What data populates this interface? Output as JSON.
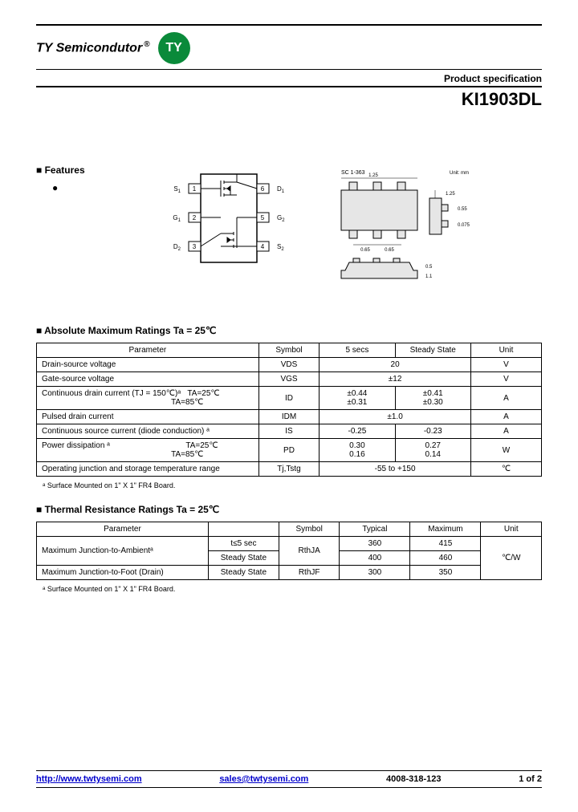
{
  "header": {
    "company": "TY Semicondutor",
    "reg": "®",
    "logo_text": "TY",
    "logo_bg": "#0a8a3a",
    "spec_label": "Product specification",
    "part_number": "KI1903DL"
  },
  "features": {
    "title": "Features"
  },
  "pin_diagram": {
    "pins_left": [
      {
        "label": "S",
        "sub": "1",
        "num": "1"
      },
      {
        "label": "G",
        "sub": "1",
        "num": "2"
      },
      {
        "label": "D",
        "sub": "2",
        "num": "3"
      }
    ],
    "pins_right": [
      {
        "label": "D",
        "sub": "1",
        "num": "6"
      },
      {
        "label": "G",
        "sub": "2",
        "num": "5"
      },
      {
        "label": "S",
        "sub": "2",
        "num": "4"
      }
    ],
    "body_fill": "#ffffff",
    "stroke": "#000000"
  },
  "pkg_diagram": {
    "title": "SC 1-363",
    "unit_note": "Unit: mm",
    "dims": {
      "top_w": "1.25",
      "pitch1": "0.65",
      "pitch2": "0.65",
      "body_w": "1.25",
      "side_h1": "0.55",
      "side_h2": "0.075",
      "lead_h": "0.5",
      "body_h": "1.1"
    },
    "fill": "#e6e6e6",
    "stroke": "#000000"
  },
  "abs_max": {
    "title": "Absolute Maximum Ratings Ta = 25℃",
    "headers": [
      "Parameter",
      "Symbol",
      "5 secs",
      "Steady State",
      "Unit"
    ],
    "rows": [
      {
        "param": "Drain-source voltage",
        "symbol": "VDS",
        "v5": "20",
        "vss": "",
        "unit": "V",
        "span5": true
      },
      {
        "param": "Gate-source voltage",
        "symbol": "VGS",
        "v5": "±12",
        "vss": "",
        "unit": "V",
        "span5": true
      },
      {
        "param_html": "Continuous drain current (TJ = 150℃)ᵃ&nbsp;&nbsp;&nbsp;TA=25℃<br>&nbsp;&nbsp;&nbsp;&nbsp;&nbsp;&nbsp;&nbsp;&nbsp;&nbsp;&nbsp;&nbsp;&nbsp;&nbsp;&nbsp;&nbsp;&nbsp;&nbsp;&nbsp;&nbsp;&nbsp;&nbsp;&nbsp;&nbsp;&nbsp;&nbsp;&nbsp;&nbsp;&nbsp;&nbsp;&nbsp;&nbsp;&nbsp;&nbsp;&nbsp;&nbsp;&nbsp;&nbsp;&nbsp;&nbsp;&nbsp;&nbsp;&nbsp;&nbsp;&nbsp;&nbsp;&nbsp;&nbsp;&nbsp;&nbsp;&nbsp;&nbsp;&nbsp;&nbsp;&nbsp;&nbsp;&nbsp;&nbsp;&nbsp;TA=85℃",
        "symbol": "ID",
        "v5": "±0.44<br>±0.31",
        "vss": "±0.41<br>±0.30",
        "unit": "A"
      },
      {
        "param": "Pulsed drain current",
        "symbol": "IDM",
        "v5": "±1.0",
        "vss": "",
        "unit": "A",
        "span5": true
      },
      {
        "param": "Continuous source current (diode conduction) ᵃ",
        "symbol": "IS",
        "v5": "-0.25",
        "vss": "-0.23",
        "unit": "A"
      },
      {
        "param_html": "Power dissipation ᵃ&nbsp;&nbsp;&nbsp;&nbsp;&nbsp;&nbsp;&nbsp;&nbsp;&nbsp;&nbsp;&nbsp;&nbsp;&nbsp;&nbsp;&nbsp;&nbsp;&nbsp;&nbsp;&nbsp;&nbsp;&nbsp;&nbsp;&nbsp;&nbsp;&nbsp;&nbsp;&nbsp;&nbsp;&nbsp;&nbsp;&nbsp;&nbsp;&nbsp;&nbsp;TA=25℃<br>&nbsp;&nbsp;&nbsp;&nbsp;&nbsp;&nbsp;&nbsp;&nbsp;&nbsp;&nbsp;&nbsp;&nbsp;&nbsp;&nbsp;&nbsp;&nbsp;&nbsp;&nbsp;&nbsp;&nbsp;&nbsp;&nbsp;&nbsp;&nbsp;&nbsp;&nbsp;&nbsp;&nbsp;&nbsp;&nbsp;&nbsp;&nbsp;&nbsp;&nbsp;&nbsp;&nbsp;&nbsp;&nbsp;&nbsp;&nbsp;&nbsp;&nbsp;&nbsp;&nbsp;&nbsp;&nbsp;&nbsp;&nbsp;&nbsp;&nbsp;&nbsp;&nbsp;&nbsp;&nbsp;&nbsp;&nbsp;&nbsp;&nbsp;TA=85℃",
        "symbol": "PD",
        "v5": "0.30<br>0.16",
        "vss": "0.27<br>0.14",
        "unit": "W"
      },
      {
        "param": "Operating junction and storage temperature range",
        "symbol": "Tj,Tstg",
        "v5": "-55 to +150",
        "vss": "",
        "unit": "℃",
        "span5": true
      }
    ],
    "footnote": "ᵃ Surface Mounted on 1\" X 1\" FR4 Board."
  },
  "thermal": {
    "title": "Thermal Resistance  Ratings Ta = 25℃",
    "headers": [
      "Parameter",
      "",
      "Symbol",
      "Typical",
      "Maximum",
      "Unit"
    ],
    "rows": [
      {
        "param": "Maximum Junction-to-Ambientᵃ",
        "cond": "t≤5 sec",
        "symbol": "RthJA",
        "typ": "360",
        "max": "415",
        "unit": "℃/W",
        "param_rowspan": 2,
        "symbol_rowspan": 2,
        "unit_rowspan": 3
      },
      {
        "cond": "Steady State",
        "typ": "400",
        "max": "460"
      },
      {
        "param": "Maximum Junction-to-Foot (Drain)",
        "cond": "Steady State",
        "symbol": "RthJF",
        "typ": "300",
        "max": "350"
      }
    ],
    "footnote": "ᵃ Surface Mounted on 1\" X 1\" FR4 Board."
  },
  "footer": {
    "url": "http://www.twtysemi.com",
    "email": "sales@twtysemi.com",
    "phone": "4008-318-123",
    "page": "1 of 2"
  }
}
